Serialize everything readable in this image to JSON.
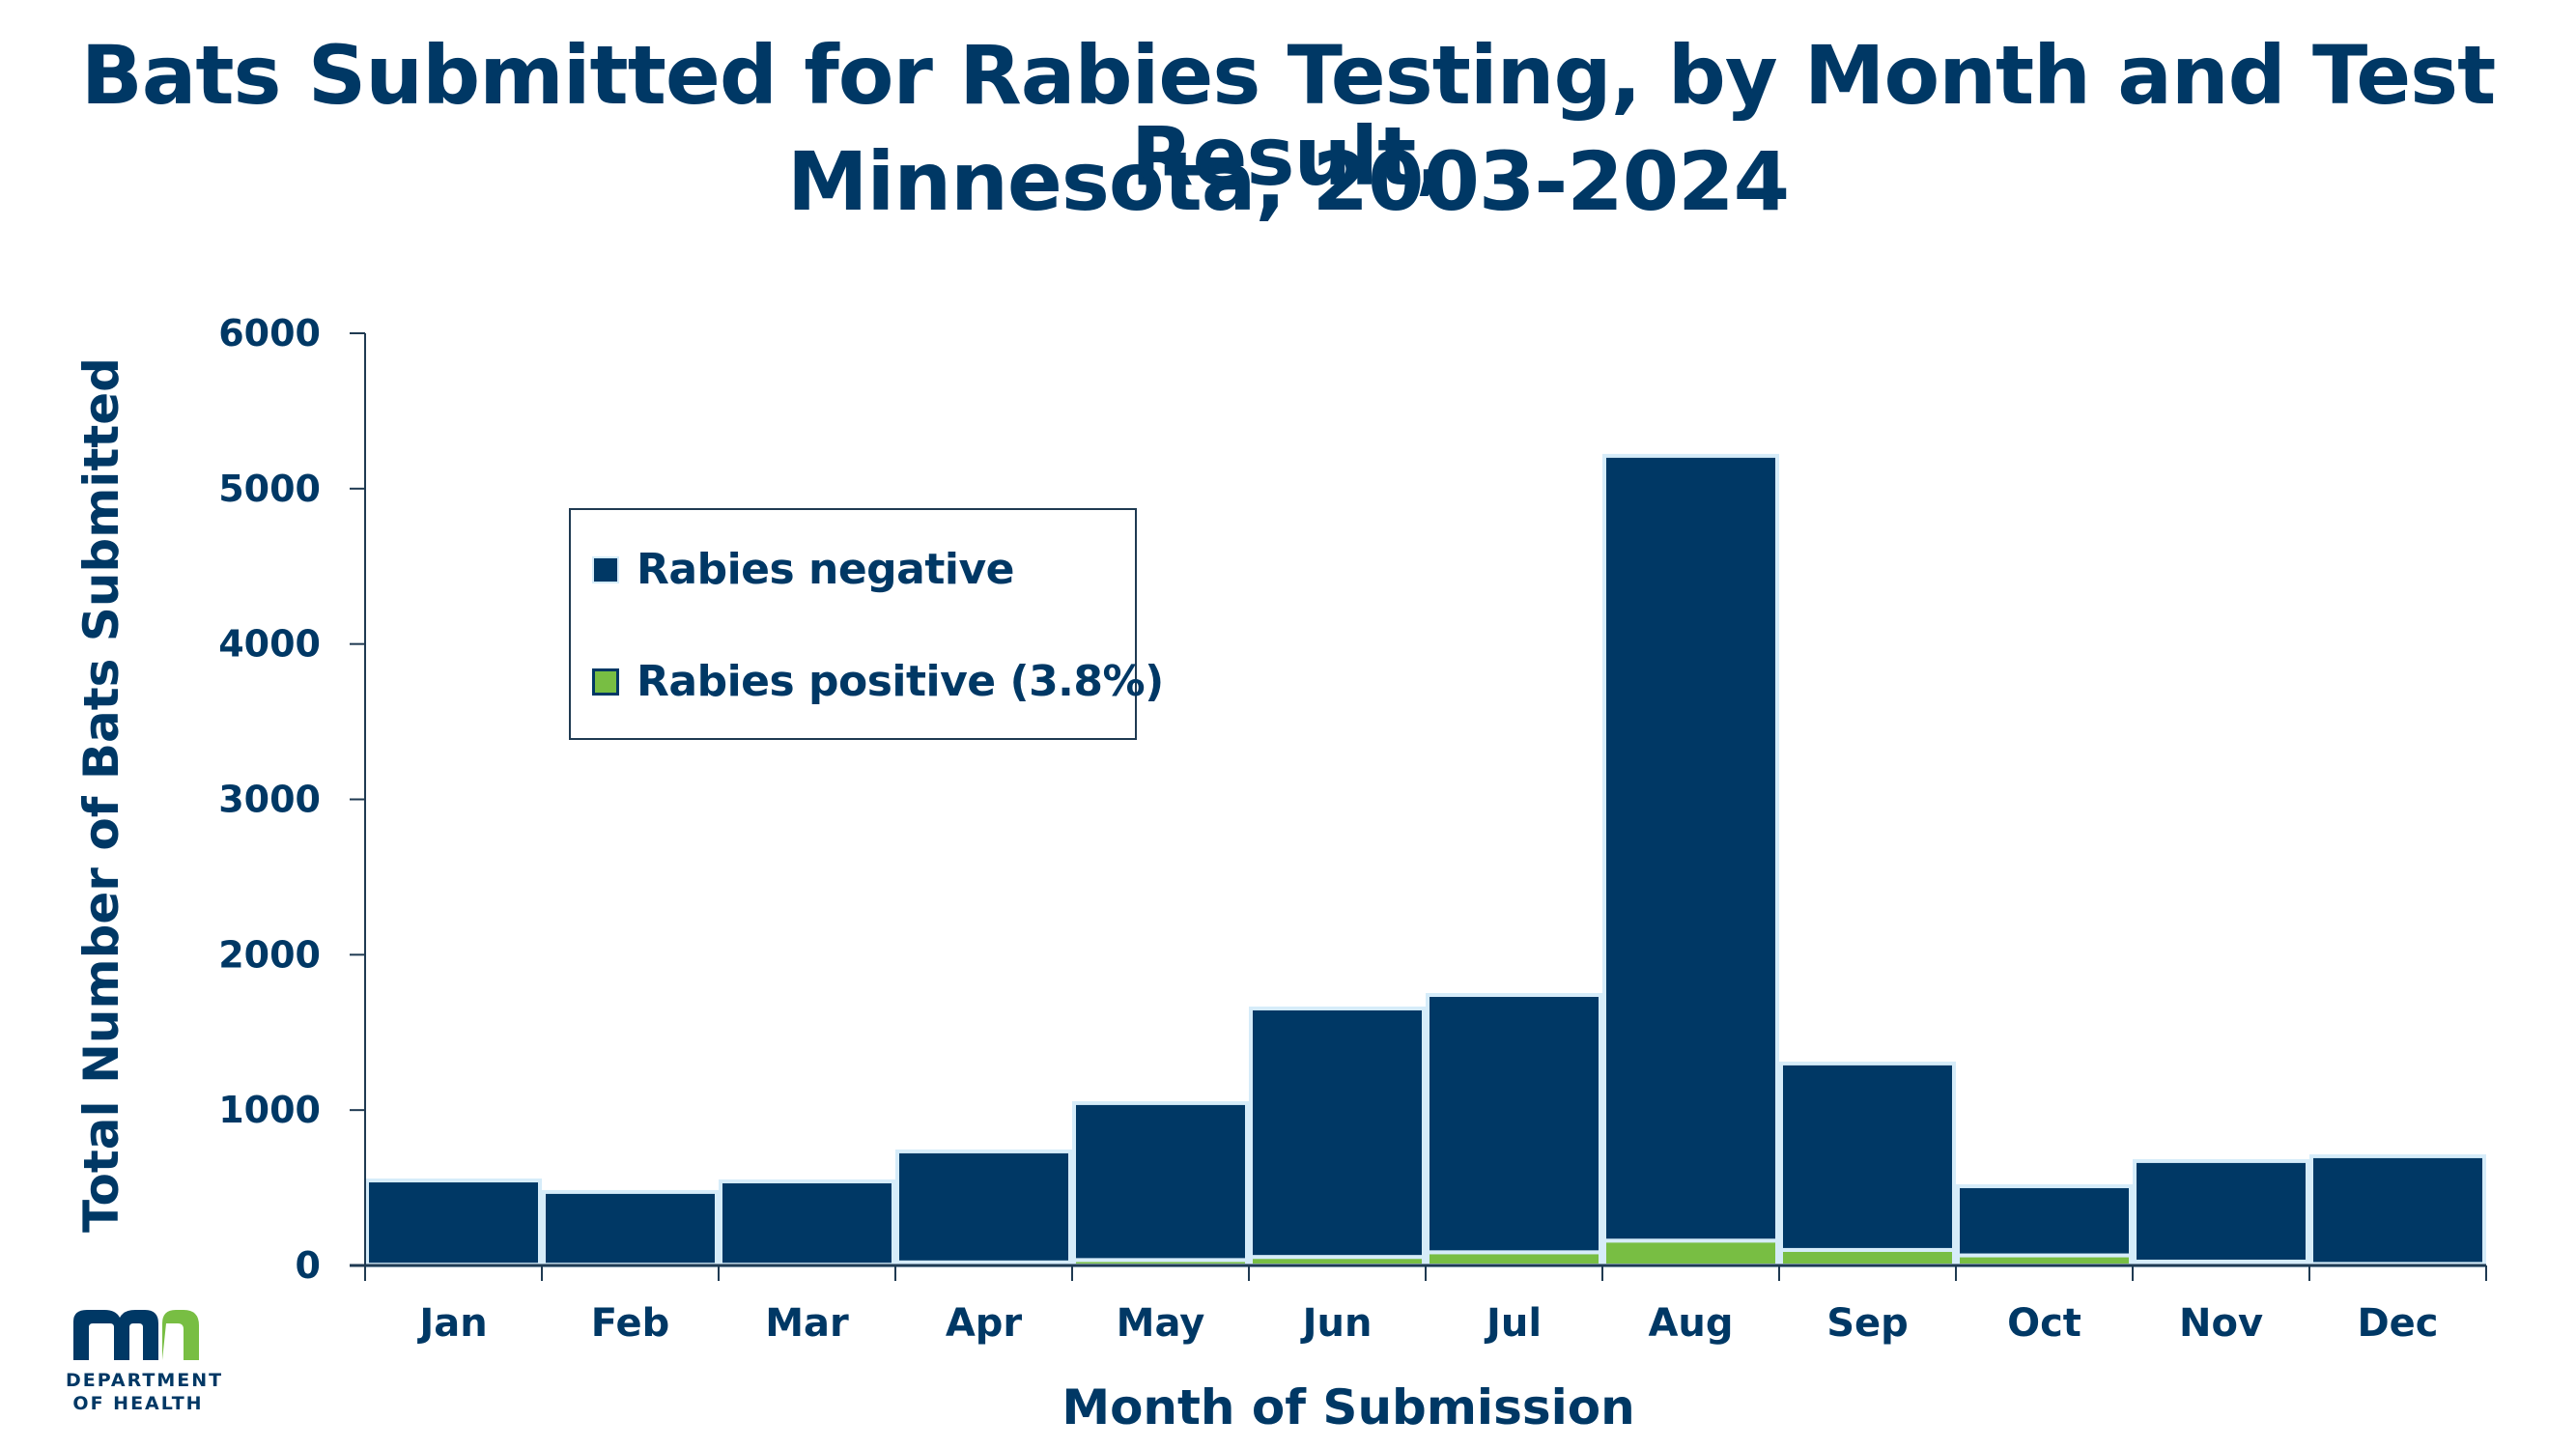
{
  "title": {
    "line1": "Bats Submitted for Rabies Testing, by Month and Test Result,",
    "line2": "Minnesota, 2003-2024"
  },
  "colors": {
    "negative": "#003865",
    "positive": "#78BE43",
    "bar_border": "#D6ECF9",
    "text": "#003865",
    "axis": "#1F3A52"
  },
  "logo": {
    "mark_left": "m",
    "mark_right": "n",
    "line1": "DEPARTMENT",
    "line2": "OF HEALTH",
    "icon": "mn-department-of-health-logo"
  },
  "chart_data": {
    "type": "bar",
    "stacked": true,
    "title": "Bats Submitted for Rabies Testing, by Month and Test Result, Minnesota, 2003-2024",
    "xlabel": "Month of Submission",
    "ylabel": "Total Number of Bats Submitted",
    "ylim": [
      0,
      6000
    ],
    "yticks": [
      0,
      1000,
      2000,
      3000,
      4000,
      5000,
      6000
    ],
    "grid": false,
    "legend_position": "top-left",
    "categories": [
      "Jan",
      "Feb",
      "Mar",
      "Apr",
      "May",
      "Jun",
      "Jul",
      "Aug",
      "Sep",
      "Oct",
      "Nov",
      "Dec"
    ],
    "series": [
      {
        "name": "Rabies positive (3.8%)",
        "key": "positive",
        "values": [
          5,
          5,
          5,
          20,
          35,
          55,
          85,
          160,
          100,
          65,
          25,
          10
        ]
      },
      {
        "name": "Rabies negative",
        "key": "negative",
        "values": [
          542,
          468,
          536,
          714,
          1010,
          1599,
          1656,
          5051,
          1200,
          445,
          647,
          693
        ]
      }
    ],
    "totals": [
      547,
      473,
      541,
      734,
      1045,
      1654,
      1741,
      5211,
      1300,
      510,
      672,
      703
    ]
  },
  "legend": {
    "items": [
      {
        "label": "Rabies negative",
        "key": "negative"
      },
      {
        "label": "Rabies positive (3.8%)",
        "key": "positive"
      }
    ]
  }
}
